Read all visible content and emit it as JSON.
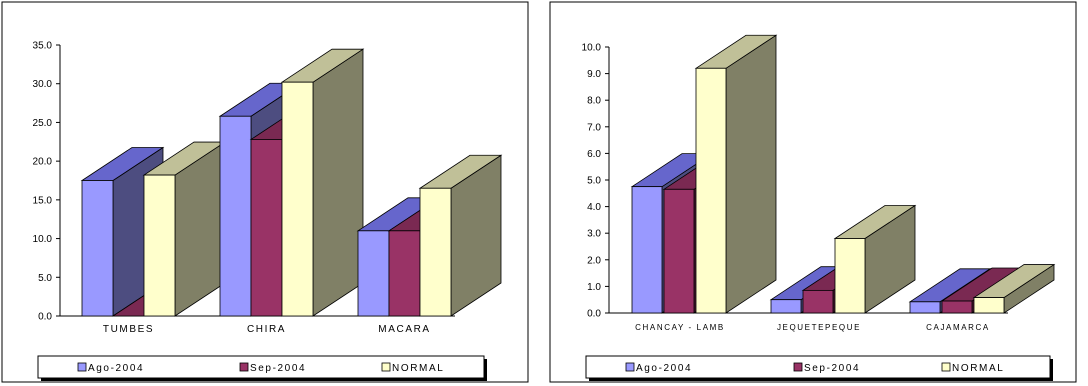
{
  "chart_data": [
    {
      "type": "bar",
      "categories": [
        "TUMBES",
        "CHIRA",
        "MACARA"
      ],
      "series": [
        {
          "name": "Ago-2004",
          "values": [
            17.5,
            25.8,
            11.0
          ]
        },
        {
          "name": "Sep-2004",
          "values": [
            0.0,
            22.8,
            11.0
          ]
        },
        {
          "name": "NORMAL",
          "values": [
            18.2,
            30.2,
            16.5
          ]
        }
      ],
      "ylim": [
        0,
        35
      ],
      "yticks": [
        "0.0",
        "5.0",
        "10.0",
        "15.0",
        "20.0",
        "25.0",
        "30.0",
        "35.0"
      ],
      "legend_position": "bottom",
      "colors": [
        "#9999ff",
        "#993366",
        "#ffffcc"
      ],
      "side_colors": [
        "#4d4d80",
        "#4d1a33",
        "#808066"
      ],
      "top_colors": [
        "#6666cc",
        "#7a2952",
        "#c0c098"
      ]
    },
    {
      "type": "bar",
      "categories": [
        "CHANCAY - LAMB",
        "JEQUETEPEQUE",
        "CAJAMARCA"
      ],
      "series": [
        {
          "name": "Ago-2004",
          "values": [
            4.75,
            0.5,
            0.42
          ]
        },
        {
          "name": "Sep-2004",
          "values": [
            4.65,
            0.85,
            0.45
          ]
        },
        {
          "name": "NORMAL",
          "values": [
            9.2,
            2.8,
            0.58
          ]
        }
      ],
      "ylim": [
        0,
        10
      ],
      "yticks": [
        "0.0",
        "1.0",
        "2.0",
        "3.0",
        "4.0",
        "5.0",
        "6.0",
        "7.0",
        "8.0",
        "9.0",
        "10.0"
      ],
      "legend_position": "bottom",
      "colors": [
        "#9999ff",
        "#993366",
        "#ffffcc"
      ],
      "side_colors": [
        "#4d4d80",
        "#4d1a33",
        "#808066"
      ],
      "top_colors": [
        "#6666cc",
        "#7a2952",
        "#c0c098"
      ]
    }
  ]
}
